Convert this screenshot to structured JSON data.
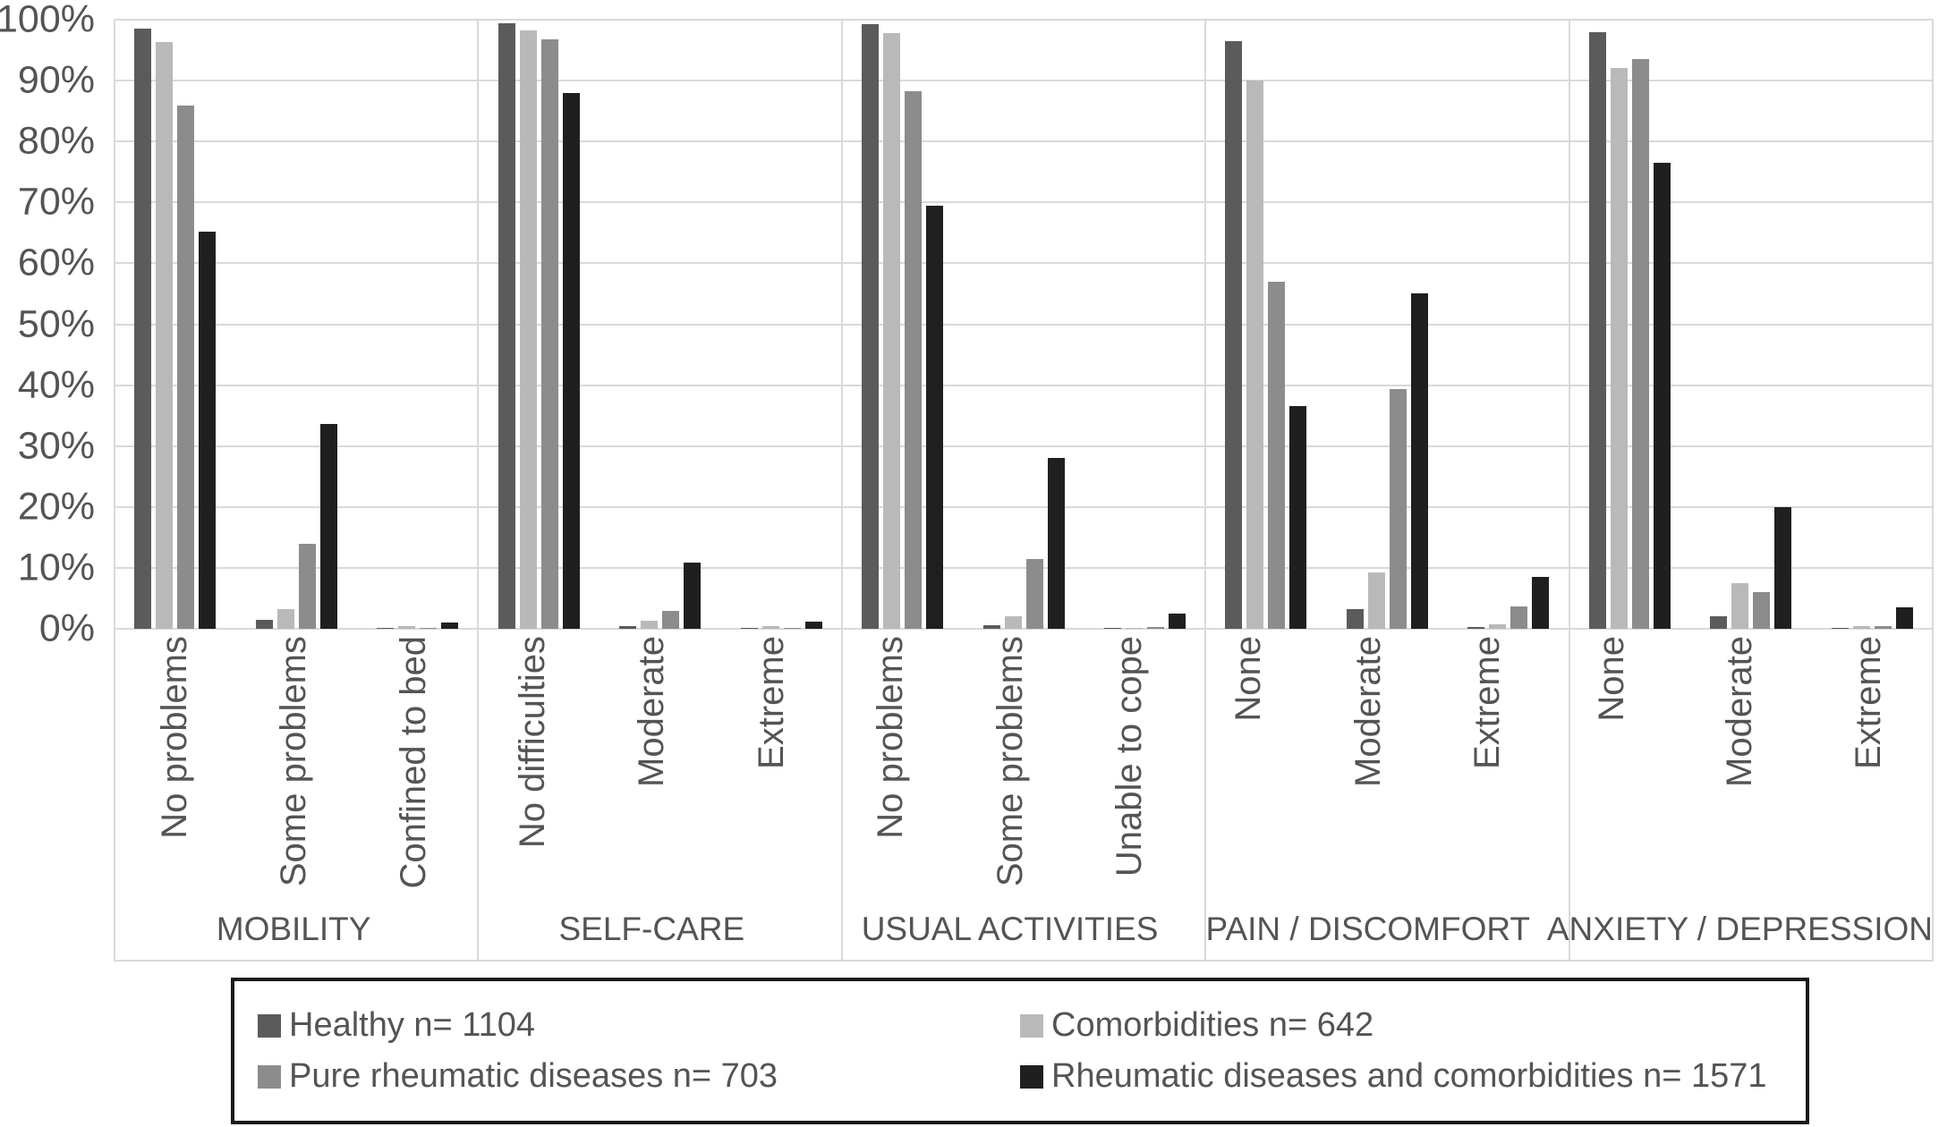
{
  "figure": {
    "background": "#ffffff",
    "text_color": "#545454",
    "gridline_color": "#d9d9d9",
    "legend_border_color": "#1a1a1a"
  },
  "chart_data": {
    "type": "bar",
    "title": "",
    "xlabel": "",
    "ylabel": "",
    "ylim": [
      0,
      100
    ],
    "grid": true,
    "legend_position": "bottom",
    "ytick_values": [
      0,
      10,
      20,
      30,
      40,
      50,
      60,
      70,
      80,
      90,
      100
    ],
    "ytick_labels": [
      "0%",
      "10%",
      "20%",
      "30%",
      "40%",
      "50%",
      "60%",
      "70%",
      "80%",
      "90%",
      "100%"
    ],
    "series": [
      {
        "name": "Healthy n= 1104",
        "color": "#5b5b5b"
      },
      {
        "name": "Comorbidities n= 642",
        "color": "#b9b9b9"
      },
      {
        "name": "Pure rheumatic diseases n= 703",
        "color": "#8c8c8c"
      },
      {
        "name": "Rheumatic diseases and comorbidities n= 1571",
        "color": "#1f1f1f"
      }
    ],
    "groups": [
      {
        "dimension": "MOBILITY",
        "categories": [
          "No problems",
          "Some problems",
          "Confined to bed"
        ],
        "values": [
          [
            98.5,
            96.4,
            85.9,
            65.2
          ],
          [
            1.4,
            3.2,
            13.9,
            33.7
          ],
          [
            0.1,
            0.4,
            0.2,
            1.1
          ]
        ]
      },
      {
        "dimension": "SELF-CARE",
        "categories": [
          "No difficulties",
          "Moderate",
          "Extreme"
        ],
        "values": [
          [
            99.4,
            98.3,
            96.8,
            87.9
          ],
          [
            0.5,
            1.3,
            3.0,
            10.9
          ],
          [
            0.1,
            0.4,
            0.2,
            1.2
          ]
        ]
      },
      {
        "dimension": "USUAL ACTIVITIES",
        "categories": [
          "No problems",
          "Some problems",
          "Unable to cope"
        ],
        "values": [
          [
            99.3,
            97.8,
            88.2,
            69.5
          ],
          [
            0.6,
            2.0,
            11.5,
            28.0
          ],
          [
            0.1,
            0.2,
            0.3,
            2.5
          ]
        ]
      },
      {
        "dimension": "PAIN / DISCOMFORT",
        "categories": [
          "None",
          "Moderate",
          "Extreme"
        ],
        "values": [
          [
            96.5,
            90.0,
            57.0,
            36.5
          ],
          [
            3.2,
            9.3,
            39.4,
            55.0
          ],
          [
            0.3,
            0.7,
            3.6,
            8.5
          ]
        ]
      },
      {
        "dimension": "ANXIETY / DEPRESSION",
        "categories": [
          "None",
          "Moderate",
          "Extreme"
        ],
        "values": [
          [
            97.9,
            92.0,
            93.6,
            76.5
          ],
          [
            2.0,
            7.5,
            6.0,
            20.0
          ],
          [
            0.1,
            0.5,
            0.4,
            3.5
          ]
        ]
      }
    ]
  }
}
